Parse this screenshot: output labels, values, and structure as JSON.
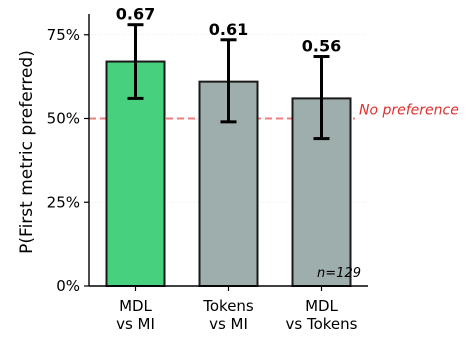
{
  "chart_data": {
    "type": "bar",
    "categories": [
      [
        "MDL",
        "vs MI"
      ],
      [
        "Tokens",
        "vs MI"
      ],
      [
        "MDL",
        "vs Tokens"
      ]
    ],
    "values": [
      0.67,
      0.61,
      0.56
    ],
    "value_labels": [
      "0.67",
      "0.61",
      "0.56"
    ],
    "error_low": [
      0.56,
      0.49,
      0.44
    ],
    "error_high": [
      0.78,
      0.735,
      0.685
    ],
    "bar_colors": [
      "#47d17f",
      "#9eaeac",
      "#9eaeac"
    ],
    "ylabel": "P(First metric preferred)",
    "ylim": [
      0,
      0.8
    ],
    "yticks": [
      {
        "value": 0,
        "label": "0%"
      },
      {
        "value": 0.25,
        "label": "25%"
      },
      {
        "value": 0.5,
        "label": "50%"
      },
      {
        "value": 0.75,
        "label": "75%"
      }
    ],
    "reference_line": {
      "value": 0.5,
      "label": "No preference",
      "color": "#e03030"
    },
    "note": "n=129",
    "grid": "horizontal, faint, dotted"
  }
}
